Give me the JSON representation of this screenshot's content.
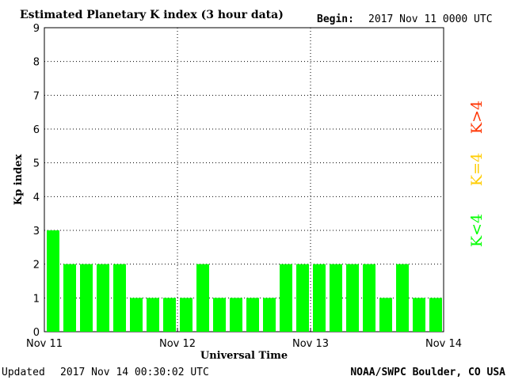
{
  "chart_data": {
    "type": "bar",
    "title": "Estimated Planetary K index (3 hour data)",
    "begin_label": "Begin:",
    "begin_value": "2017 Nov 11 0000 UTC",
    "xlabel": "Universal Time",
    "ylabel": "Kp index",
    "ylim": [
      0,
      9
    ],
    "yticks": [
      "0",
      "1",
      "2",
      "3",
      "4",
      "5",
      "6",
      "7",
      "8",
      "9"
    ],
    "xticks": [
      "Nov 11",
      "Nov 12",
      "Nov 13",
      "Nov 14"
    ],
    "interval_hours": 3,
    "values": [
      3,
      2,
      2,
      2,
      2,
      1,
      1,
      1,
      1,
      2,
      1,
      1,
      1,
      1,
      2,
      2,
      2,
      2,
      2,
      2,
      1,
      2,
      1,
      1
    ],
    "grid": "dotted",
    "legend": [
      {
        "label": "K<4",
        "color": "#00ff00"
      },
      {
        "label": "K=4",
        "color": "#ffcc00"
      },
      {
        "label": "K>4",
        "color": "#ff3300"
      }
    ],
    "legend_position": "right"
  },
  "footer": {
    "updated_label": "Updated",
    "updated_value": "2017 Nov 14 00:30:02 UTC",
    "credit": "NOAA/SWPC Boulder, CO USA"
  }
}
